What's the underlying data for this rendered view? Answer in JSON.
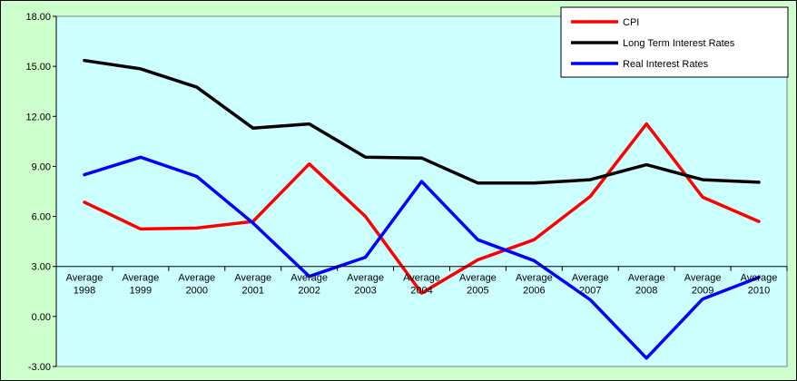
{
  "chart_data": {
    "type": "line",
    "title": "",
    "xlabel": "",
    "ylabel": "",
    "categories": [
      [
        "Average",
        "1998"
      ],
      [
        "Average",
        "1999"
      ],
      [
        "Average",
        "2000"
      ],
      [
        "Average",
        "2001"
      ],
      [
        "Average",
        "2002"
      ],
      [
        "Average",
        "2003"
      ],
      [
        "Average",
        "2004"
      ],
      [
        "Average",
        "2005"
      ],
      [
        "Average",
        "2006"
      ],
      [
        "Average",
        "2007"
      ],
      [
        "Average",
        "2008"
      ],
      [
        "Average",
        "2009"
      ],
      [
        "Average",
        "2010"
      ]
    ],
    "ylim": [
      -3.0,
      18.0
    ],
    "yticks": [
      "18.00",
      "15.00",
      "12.00",
      "9.00",
      "6.00",
      "3.00",
      "0.00",
      "-3.00"
    ],
    "ytick_values": [
      18,
      15,
      12,
      9,
      6,
      3,
      0,
      -3
    ],
    "x_axis_crosses_at": 3.0,
    "grid": false,
    "legend_position": "top-right",
    "plot_background": "#ccffff",
    "chart_background": "#ccffcc",
    "series": [
      {
        "name": "CPI",
        "color": "#ff0000",
        "values": [
          6.85,
          5.25,
          5.3,
          5.7,
          9.15,
          6.0,
          1.4,
          3.4,
          4.6,
          7.2,
          11.55,
          7.15,
          5.7
        ]
      },
      {
        "name": "Long Term Interest Rates",
        "color": "#000000",
        "values": [
          15.35,
          14.85,
          13.75,
          11.3,
          11.55,
          9.55,
          9.5,
          8.0,
          8.0,
          8.2,
          9.1,
          8.2,
          8.05
        ]
      },
      {
        "name": "Real Interest Rates",
        "color": "#0000ff",
        "values": [
          8.5,
          9.55,
          8.4,
          5.6,
          2.4,
          3.55,
          8.1,
          4.6,
          3.35,
          1.0,
          -2.5,
          1.05,
          2.35
        ]
      }
    ]
  }
}
